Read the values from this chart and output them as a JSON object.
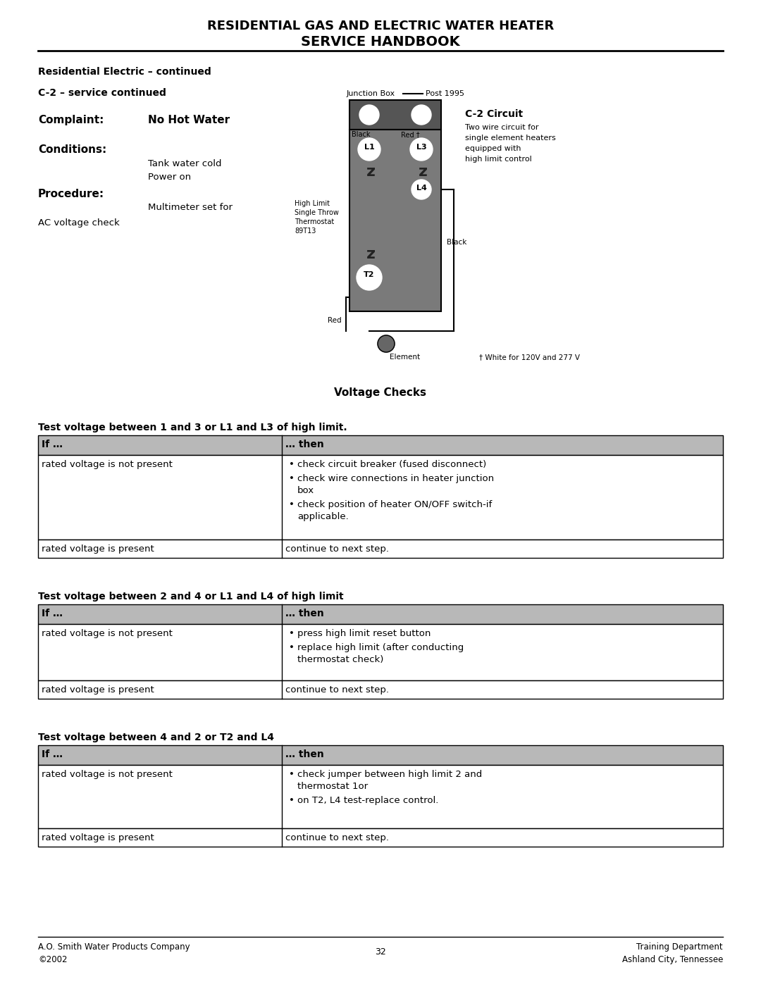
{
  "title_line1": "RESIDENTIAL GAS AND ELECTRIC WATER HEATER",
  "title_line2": "SERVICE HANDBOOK",
  "section_header": "Residential Electric – continued",
  "subsection": "C-2 – service continued",
  "complaint_label": "Complaint:",
  "complaint_value": "No Hot Water",
  "conditions_label": "Conditions:",
  "procedure_label": "Procedure:",
  "procedure_text": "Multimeter set for",
  "procedure_text2": "AC voltage check",
  "voltage_checks_title": "Voltage Checks",
  "table1_title": "Test voltage between 1 and 3 or L1 and L3 of high limit.",
  "table1_header": [
    "If …",
    "… then"
  ],
  "table1_row1_col1": "rated voltage is not present",
  "table1_row1_col2": [
    "check circuit breaker (fused disconnect)",
    "check wire connections in heater junction\nbox",
    "check position of heater ON/OFF switch-if\napplicable."
  ],
  "table1_row2_col1": "rated voltage is present",
  "table1_row2_col2": "continue to next step.",
  "table2_title": "Test voltage between 2 and 4 or L1 and L4 of high limit",
  "table2_header": [
    "If …",
    "… then"
  ],
  "table2_row1_col1": "rated voltage is not present",
  "table2_row1_col2": [
    "press high limit reset button",
    "replace high limit (after conducting\nthermostat check)"
  ],
  "table2_row2_col1": "rated voltage is present",
  "table2_row2_col2": "continue to next step.",
  "table3_title": "Test voltage between 4 and 2 or T2 and L4",
  "table3_header": [
    "If …",
    "… then"
  ],
  "table3_row1_col1": "rated voltage is not present",
  "table3_row1_col2": [
    "check jumper between high limit 2 and\nthermostat 1or",
    "on T2, L4 test-replace control."
  ],
  "table3_row2_col1": "rated voltage is present",
  "table3_row2_col2": "continue to next step.",
  "footer_left1": "A.O. Smith Water Products Company",
  "footer_left2": "©2002",
  "footer_center": "32",
  "footer_right1": "Training Department",
  "footer_right2": "Ashland City, Tennessee",
  "bg_color": "#ffffff",
  "text_color": "#000000",
  "table_header_bg": "#b8b8b8",
  "diagram_box_color": "#7a7a7a",
  "diagram_top_color": "#555555",
  "diagram_inner_color": "#909090"
}
